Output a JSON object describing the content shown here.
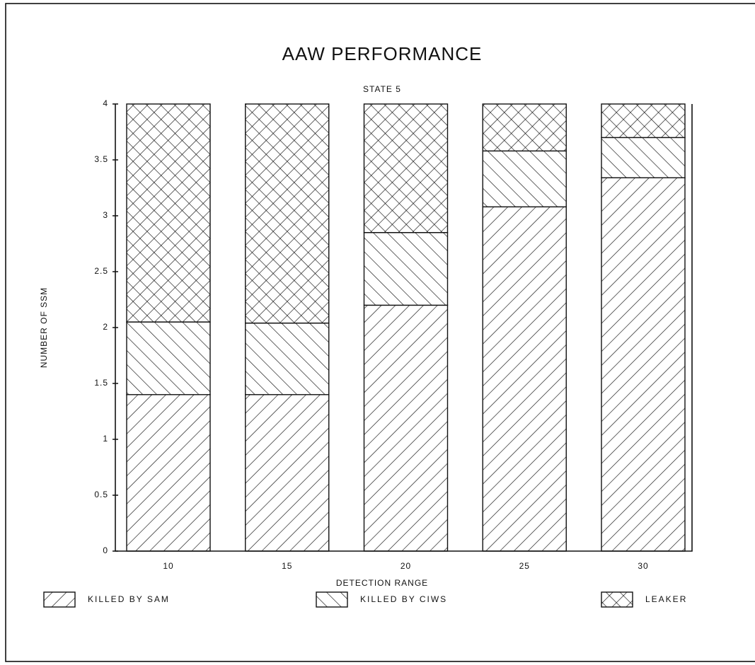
{
  "chart_data": {
    "type": "stacked_bar",
    "title": "AAW PERFORMANCE",
    "subtitle": "STATE 5",
    "x_label": "DETECTION RANGE",
    "y_label": "NUMBER OF SSM",
    "categories": [
      "10",
      "15",
      "20",
      "25",
      "30"
    ],
    "series": [
      {
        "name": "KILLED BY SAM",
        "color": "#111111",
        "values": [
          1.4,
          1.4,
          2.2,
          3.08,
          3.34
        ]
      },
      {
        "name": "KILLED BY CIWS",
        "color": "#111111",
        "values": [
          0.65,
          0.64,
          0.65,
          0.5,
          0.36
        ]
      },
      {
        "name": "LEAKER",
        "color": "#111111",
        "values": [
          1.95,
          1.96,
          1.15,
          0.42,
          0.3
        ]
      }
    ],
    "ylim": [
      0,
      4
    ],
    "yticks": [
      0,
      0.5,
      1,
      1.5,
      2,
      2.5,
      3,
      3.5,
      4
    ],
    "grid": false
  }
}
